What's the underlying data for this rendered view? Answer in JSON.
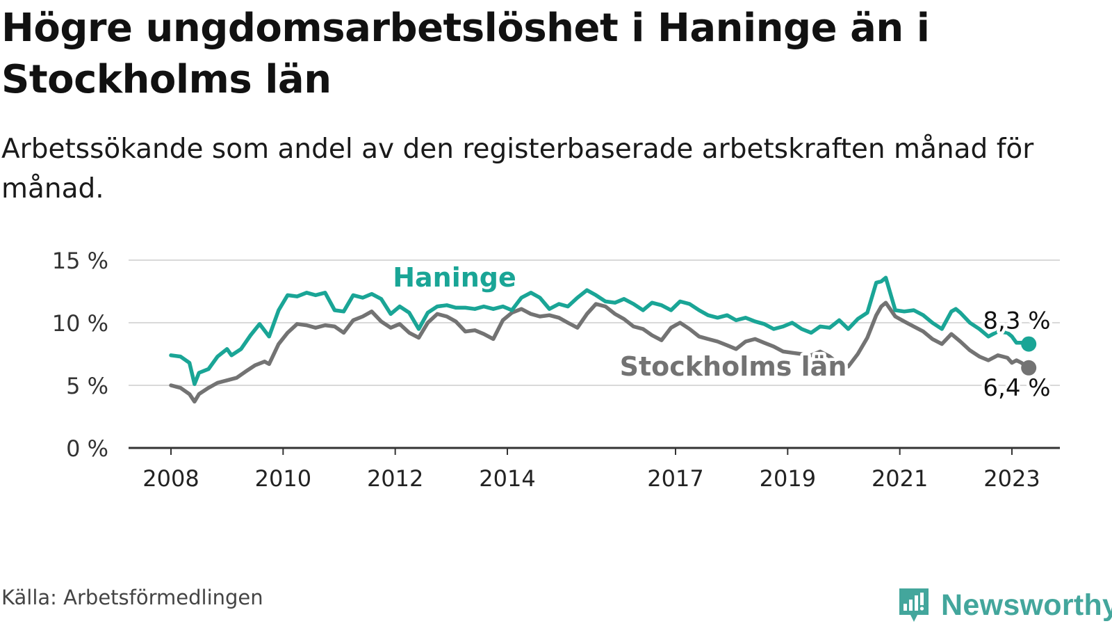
{
  "title": "Högre ungdomsarbetslöshet i Haninge än i Stockholms län",
  "subtitle": "Arbetssökande som andel av den registerbaserade arbetskraften månad för månad.",
  "source": "Källa: Arbetsförmedlingen",
  "brand": "Newsworthy",
  "colors": {
    "haninge": "#1aa596",
    "stockholm": "#737373",
    "grid": "#d9d9d9",
    "axis": "#333333"
  },
  "chart_data": {
    "type": "line",
    "title": "Högre ungdomsarbetslöshet i Haninge än i Stockholms län",
    "xlabel": "",
    "ylabel": "",
    "xlim": [
      2008,
      2023.3
    ],
    "ylim": [
      0,
      15
    ],
    "y_ticks": [
      0,
      5,
      10,
      15
    ],
    "y_tick_labels": [
      "0 %",
      "5 %",
      "10 %",
      "15 %"
    ],
    "x_ticks": [
      2008,
      2010,
      2012,
      2014,
      2017,
      2019,
      2021,
      2023
    ],
    "x_tick_labels": [
      "2008",
      "2010",
      "2012",
      "2014",
      "2017",
      "2019",
      "2021",
      "2023"
    ],
    "grid": true,
    "series": [
      {
        "name": "Haninge",
        "label": "Haninge",
        "end_label": "8,3 %",
        "points": [
          [
            2008.0,
            7.4
          ],
          [
            2008.17,
            7.3
          ],
          [
            2008.33,
            6.8
          ],
          [
            2008.42,
            5.1
          ],
          [
            2008.5,
            6.0
          ],
          [
            2008.67,
            6.3
          ],
          [
            2008.83,
            7.3
          ],
          [
            2009.0,
            7.9
          ],
          [
            2009.08,
            7.4
          ],
          [
            2009.25,
            7.9
          ],
          [
            2009.42,
            9.0
          ],
          [
            2009.58,
            9.9
          ],
          [
            2009.75,
            8.9
          ],
          [
            2009.92,
            11.0
          ],
          [
            2010.08,
            12.2
          ],
          [
            2010.25,
            12.1
          ],
          [
            2010.42,
            12.4
          ],
          [
            2010.58,
            12.2
          ],
          [
            2010.75,
            12.4
          ],
          [
            2010.92,
            11.0
          ],
          [
            2011.08,
            10.9
          ],
          [
            2011.25,
            12.2
          ],
          [
            2011.42,
            12.0
          ],
          [
            2011.58,
            12.3
          ],
          [
            2011.75,
            11.9
          ],
          [
            2011.92,
            10.7
          ],
          [
            2012.08,
            11.3
          ],
          [
            2012.25,
            10.8
          ],
          [
            2012.42,
            9.5
          ],
          [
            2012.58,
            10.8
          ],
          [
            2012.75,
            11.3
          ],
          [
            2012.92,
            11.4
          ],
          [
            2013.08,
            11.2
          ],
          [
            2013.25,
            11.2
          ],
          [
            2013.42,
            11.1
          ],
          [
            2013.58,
            11.3
          ],
          [
            2013.75,
            11.1
          ],
          [
            2013.92,
            11.3
          ],
          [
            2014.08,
            11.0
          ],
          [
            2014.25,
            12.0
          ],
          [
            2014.42,
            12.4
          ],
          [
            2014.58,
            12.0
          ],
          [
            2014.75,
            11.1
          ],
          [
            2014.92,
            11.5
          ],
          [
            2015.08,
            11.3
          ],
          [
            2015.25,
            12.0
          ],
          [
            2015.42,
            12.6
          ],
          [
            2015.58,
            12.2
          ],
          [
            2015.75,
            11.7
          ],
          [
            2015.92,
            11.6
          ],
          [
            2016.08,
            11.9
          ],
          [
            2016.25,
            11.5
          ],
          [
            2016.42,
            11.0
          ],
          [
            2016.58,
            11.6
          ],
          [
            2016.75,
            11.4
          ],
          [
            2016.92,
            11.0
          ],
          [
            2017.08,
            11.7
          ],
          [
            2017.25,
            11.5
          ],
          [
            2017.42,
            11.0
          ],
          [
            2017.58,
            10.6
          ],
          [
            2017.75,
            10.4
          ],
          [
            2017.92,
            10.6
          ],
          [
            2018.08,
            10.2
          ],
          [
            2018.25,
            10.4
          ],
          [
            2018.42,
            10.1
          ],
          [
            2018.58,
            9.9
          ],
          [
            2018.75,
            9.5
          ],
          [
            2018.92,
            9.7
          ],
          [
            2019.08,
            10.0
          ],
          [
            2019.25,
            9.5
          ],
          [
            2019.42,
            9.2
          ],
          [
            2019.58,
            9.7
          ],
          [
            2019.75,
            9.6
          ],
          [
            2019.92,
            10.2
          ],
          [
            2020.08,
            9.5
          ],
          [
            2020.25,
            10.3
          ],
          [
            2020.42,
            10.8
          ],
          [
            2020.58,
            13.2
          ],
          [
            2020.67,
            13.3
          ],
          [
            2020.75,
            13.6
          ],
          [
            2020.92,
            11.0
          ],
          [
            2021.08,
            10.9
          ],
          [
            2021.25,
            11.0
          ],
          [
            2021.42,
            10.6
          ],
          [
            2021.58,
            10.0
          ],
          [
            2021.75,
            9.5
          ],
          [
            2021.92,
            10.9
          ],
          [
            2022.0,
            11.1
          ],
          [
            2022.08,
            10.8
          ],
          [
            2022.25,
            10.0
          ],
          [
            2022.42,
            9.5
          ],
          [
            2022.58,
            8.9
          ],
          [
            2022.75,
            9.3
          ],
          [
            2022.92,
            9.2
          ],
          [
            2023.0,
            8.9
          ],
          [
            2023.08,
            8.4
          ],
          [
            2023.17,
            8.4
          ],
          [
            2023.3,
            8.3
          ]
        ]
      },
      {
        "name": "Stockholms län",
        "label": "Stockholms län",
        "end_label": "6,4 %",
        "points": [
          [
            2008.0,
            5.0
          ],
          [
            2008.17,
            4.8
          ],
          [
            2008.33,
            4.3
          ],
          [
            2008.42,
            3.7
          ],
          [
            2008.5,
            4.3
          ],
          [
            2008.67,
            4.8
          ],
          [
            2008.83,
            5.2
          ],
          [
            2009.0,
            5.4
          ],
          [
            2009.17,
            5.6
          ],
          [
            2009.33,
            6.1
          ],
          [
            2009.5,
            6.6
          ],
          [
            2009.67,
            6.9
          ],
          [
            2009.75,
            6.7
          ],
          [
            2009.92,
            8.3
          ],
          [
            2010.08,
            9.2
          ],
          [
            2010.25,
            9.9
          ],
          [
            2010.42,
            9.8
          ],
          [
            2010.58,
            9.6
          ],
          [
            2010.75,
            9.8
          ],
          [
            2010.92,
            9.7
          ],
          [
            2011.08,
            9.2
          ],
          [
            2011.25,
            10.2
          ],
          [
            2011.42,
            10.5
          ],
          [
            2011.58,
            10.9
          ],
          [
            2011.75,
            10.1
          ],
          [
            2011.92,
            9.6
          ],
          [
            2012.08,
            9.9
          ],
          [
            2012.25,
            9.2
          ],
          [
            2012.42,
            8.8
          ],
          [
            2012.58,
            10.0
          ],
          [
            2012.75,
            10.7
          ],
          [
            2012.92,
            10.5
          ],
          [
            2013.08,
            10.1
          ],
          [
            2013.25,
            9.3
          ],
          [
            2013.42,
            9.4
          ],
          [
            2013.58,
            9.1
          ],
          [
            2013.75,
            8.7
          ],
          [
            2013.92,
            10.2
          ],
          [
            2014.08,
            10.8
          ],
          [
            2014.25,
            11.1
          ],
          [
            2014.42,
            10.7
          ],
          [
            2014.58,
            10.5
          ],
          [
            2014.75,
            10.6
          ],
          [
            2014.92,
            10.4
          ],
          [
            2015.08,
            10.0
          ],
          [
            2015.25,
            9.6
          ],
          [
            2015.42,
            10.7
          ],
          [
            2015.58,
            11.5
          ],
          [
            2015.75,
            11.3
          ],
          [
            2015.92,
            10.7
          ],
          [
            2016.08,
            10.3
          ],
          [
            2016.25,
            9.7
          ],
          [
            2016.42,
            9.5
          ],
          [
            2016.58,
            9.0
          ],
          [
            2016.75,
            8.6
          ],
          [
            2016.92,
            9.6
          ],
          [
            2017.08,
            10.0
          ],
          [
            2017.25,
            9.5
          ],
          [
            2017.42,
            8.9
          ],
          [
            2017.58,
            8.7
          ],
          [
            2017.75,
            8.5
          ],
          [
            2017.92,
            8.2
          ],
          [
            2018.08,
            7.9
          ],
          [
            2018.25,
            8.5
          ],
          [
            2018.42,
            8.7
          ],
          [
            2018.58,
            8.4
          ],
          [
            2018.75,
            8.1
          ],
          [
            2018.92,
            7.7
          ],
          [
            2019.08,
            7.6
          ],
          [
            2019.25,
            7.5
          ],
          [
            2019.42,
            7.4
          ],
          [
            2019.58,
            7.7
          ],
          [
            2019.75,
            7.3
          ],
          [
            2019.92,
            6.7
          ],
          [
            2020.08,
            6.5
          ],
          [
            2020.25,
            7.5
          ],
          [
            2020.42,
            8.8
          ],
          [
            2020.58,
            10.6
          ],
          [
            2020.67,
            11.3
          ],
          [
            2020.75,
            11.6
          ],
          [
            2020.92,
            10.5
          ],
          [
            2021.08,
            10.1
          ],
          [
            2021.25,
            9.7
          ],
          [
            2021.42,
            9.3
          ],
          [
            2021.58,
            8.7
          ],
          [
            2021.75,
            8.3
          ],
          [
            2021.92,
            9.1
          ],
          [
            2022.08,
            8.5
          ],
          [
            2022.25,
            7.8
          ],
          [
            2022.42,
            7.3
          ],
          [
            2022.58,
            7.0
          ],
          [
            2022.75,
            7.4
          ],
          [
            2022.92,
            7.2
          ],
          [
            2023.0,
            6.8
          ],
          [
            2023.08,
            7.0
          ],
          [
            2023.17,
            6.8
          ],
          [
            2023.3,
            6.4
          ]
        ]
      }
    ]
  }
}
